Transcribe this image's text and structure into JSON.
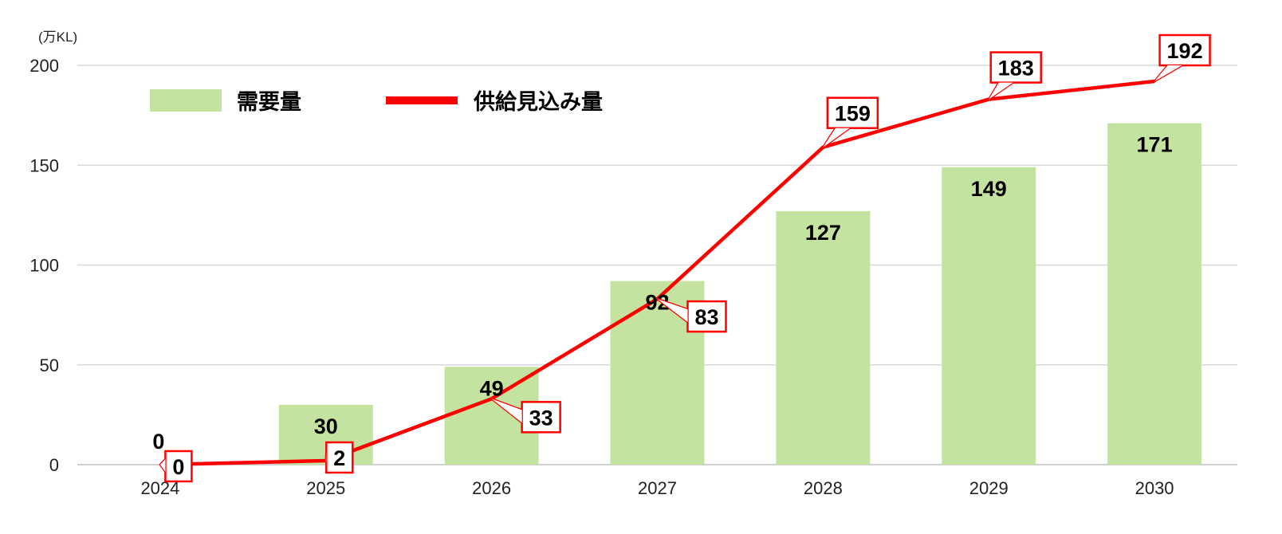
{
  "chart_data": {
    "type": "bar",
    "unit_label": "(万KL)",
    "categories": [
      "2024",
      "2025",
      "2026",
      "2027",
      "2028",
      "2029",
      "2030"
    ],
    "ylim": [
      0,
      200
    ],
    "yticks": [
      0,
      50,
      100,
      150,
      200
    ],
    "grid": true,
    "legend_position": "top-left",
    "series": [
      {
        "name": "需要量",
        "type": "bar",
        "color": "#c5e3a0",
        "values": [
          0,
          30,
          49,
          92,
          127,
          149,
          171
        ]
      },
      {
        "name": "供給見込み量",
        "type": "line",
        "color": "#ff0000",
        "values": [
          0,
          2,
          33,
          83,
          159,
          183,
          192
        ]
      }
    ]
  }
}
